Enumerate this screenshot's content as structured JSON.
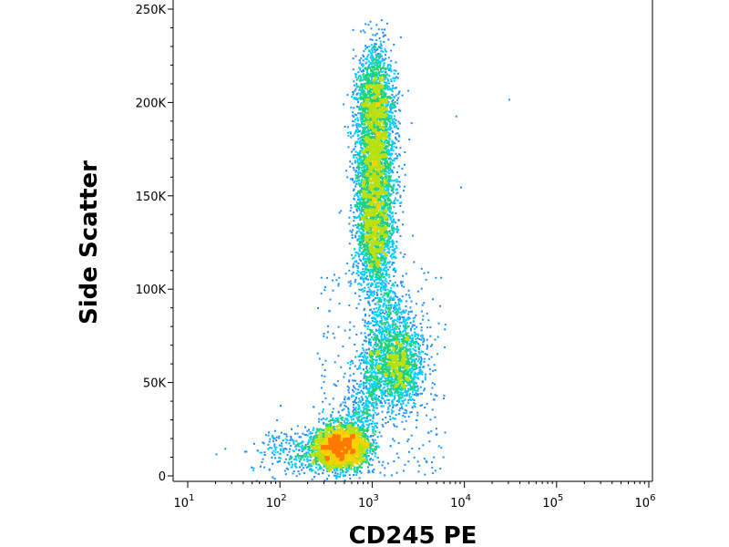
{
  "chart_data": {
    "type": "scatter",
    "subtype": "flow-cytometry density dot plot",
    "xlabel": "CD245 PE",
    "ylabel": "Side Scatter",
    "x_scale": "log",
    "xlim": [
      10,
      1000000
    ],
    "ylim": [
      0,
      262144
    ],
    "x_ticks": [
      {
        "value": 10,
        "base": "10",
        "exp": "1"
      },
      {
        "value": 100,
        "base": "10",
        "exp": "2"
      },
      {
        "value": 1000,
        "base": "10",
        "exp": "3"
      },
      {
        "value": 10000,
        "base": "10",
        "exp": "4"
      },
      {
        "value": 100000,
        "base": "10",
        "exp": "5"
      },
      {
        "value": 1000000,
        "base": "10",
        "exp": "6"
      }
    ],
    "y_ticks": [
      {
        "value": 0,
        "label": "0"
      },
      {
        "value": 50000,
        "label": "50K"
      },
      {
        "value": 100000,
        "label": "100K"
      },
      {
        "value": 150000,
        "label": "150K"
      },
      {
        "value": 200000,
        "label": "200K"
      },
      {
        "value": 250000,
        "label": "250K"
      }
    ],
    "colormap": [
      "#1a1ad8",
      "#1e90ff",
      "#00d0ff",
      "#22d07a",
      "#b8e010",
      "#ffd000",
      "#ff7a00",
      "#e01000"
    ],
    "populations": [
      {
        "center_x": 450,
        "center_y": 16000,
        "spread_log10": 0.15,
        "spread_y": 6000
      },
      {
        "center_x": 1900,
        "center_y": 60000,
        "spread_log10": 0.13,
        "spread_y": 12000
      },
      {
        "center_x": 1050,
        "center_y": 165000,
        "spread_log10": 0.1,
        "spread_y": 40000
      }
    ],
    "outliers": [
      {
        "x": 30000,
        "y": 202000
      },
      {
        "x": 9000,
        "y": 155000
      },
      {
        "x": 8000,
        "y": 193000
      },
      {
        "x": 25,
        "y": 15000
      },
      {
        "x": 20,
        "y": 12000
      }
    ],
    "grid": false,
    "legend": "none"
  }
}
